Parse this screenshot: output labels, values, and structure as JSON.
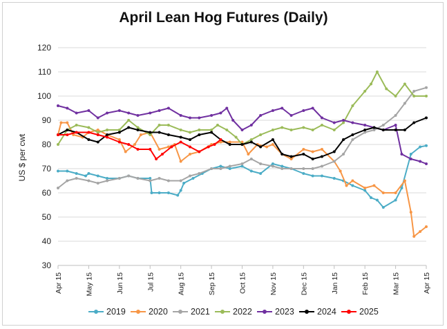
{
  "chart_data": {
    "type": "line",
    "title": "April Lean Hog Futures (Daily)",
    "ylabel": "US $ per cwt",
    "xlabel": "",
    "ylim": [
      30,
      120
    ],
    "yticks": [
      30,
      40,
      50,
      60,
      70,
      80,
      90,
      100,
      110,
      120
    ],
    "xticks": [
      "Apr 15",
      "May 15",
      "Jun 15",
      "Jul 15",
      "Aug 15",
      "Sep 15",
      "Oct 15",
      "Nov 15",
      "Dec 15",
      "Jan 15",
      "Feb 15",
      "Mar 15",
      "Apr 15"
    ],
    "grid": true,
    "legend": "bottom",
    "series": [
      {
        "name": "2019",
        "color": "#4bacc6",
        "x": [
          0,
          0.3,
          0.6,
          0.9,
          1,
          1.3,
          1.6,
          2,
          2.3,
          2.6,
          3,
          3.05,
          3.3,
          3.6,
          3.9,
          4,
          4.1,
          4.4,
          4.7,
          5,
          5.3,
          5.6,
          6,
          6.3,
          6.6,
          7,
          7.3,
          7.6,
          8,
          8.3,
          8.6,
          9,
          9.3,
          9.6,
          10,
          10.2,
          10.4,
          10.6,
          11,
          11.2,
          11.5,
          11.8,
          12
        ],
        "y": [
          69,
          69,
          68,
          67,
          68,
          67,
          66,
          66,
          67,
          66,
          66,
          60,
          60,
          60,
          59,
          61,
          64,
          66,
          68,
          70,
          71,
          70,
          71,
          69,
          68,
          72,
          71,
          70,
          68,
          67,
          67,
          66,
          65,
          63,
          61,
          58,
          57,
          54,
          57,
          62,
          76,
          79,
          79.5
        ]
      },
      {
        "name": "2020",
        "color": "#f79646",
        "x": [
          0,
          0.1,
          0.3,
          0.5,
          0.8,
          1,
          1.3,
          1.6,
          2,
          2.2,
          2.5,
          2.7,
          3,
          3.3,
          3.6,
          3.8,
          4,
          4.3,
          4.6,
          5,
          5.3,
          5.6,
          6,
          6.2,
          6.5,
          6.8,
          7,
          7.3,
          7.6,
          8,
          8.3,
          8.6,
          9,
          9.2,
          9.4,
          9.6,
          10,
          10.3,
          10.6,
          11,
          11.3,
          11.5,
          11.6,
          11.8,
          12
        ],
        "y": [
          84,
          89,
          89,
          84,
          83,
          85,
          86,
          84,
          82,
          77,
          80,
          84,
          85,
          78,
          79,
          80,
          73,
          76,
          77,
          80,
          81,
          81,
          81,
          76,
          80,
          79,
          80,
          76,
          74,
          78,
          77,
          78,
          73,
          69,
          63,
          65,
          62,
          63,
          60,
          60,
          65,
          52,
          42,
          44,
          46
        ]
      },
      {
        "name": "2021",
        "color": "#a5a5a5",
        "x": [
          0,
          0.3,
          0.6,
          1,
          1.3,
          1.6,
          2,
          2.3,
          2.6,
          3,
          3.3,
          3.6,
          4,
          4.3,
          4.6,
          5,
          5.3,
          5.6,
          6,
          6.3,
          6.6,
          7,
          7.3,
          7.6,
          8,
          8.3,
          8.6,
          9,
          9.3,
          9.6,
          10,
          10.3,
          10.6,
          11,
          11.3,
          11.6,
          12
        ],
        "y": [
          62,
          65,
          66,
          65,
          64,
          65,
          66,
          67,
          66,
          65,
          66,
          65,
          65,
          67,
          68,
          70,
          70,
          71,
          72,
          74,
          72,
          71,
          70,
          70,
          70,
          70,
          71,
          73,
          76,
          82,
          85,
          86,
          88,
          92,
          97,
          102,
          103.5
        ]
      },
      {
        "name": "2022",
        "color": "#9bbb59",
        "x": [
          0,
          0.3,
          0.6,
          1,
          1.3,
          1.6,
          2,
          2.3,
          2.6,
          3,
          3.3,
          3.6,
          4,
          4.3,
          4.6,
          5,
          5.2,
          5.5,
          5.8,
          6,
          6.3,
          6.6,
          7,
          7.3,
          7.6,
          8,
          8.3,
          8.6,
          9,
          9.3,
          9.6,
          10,
          10.2,
          10.4,
          10.7,
          11,
          11.3,
          11.6,
          12
        ],
        "y": [
          80,
          86,
          88,
          87,
          85,
          86,
          86,
          90,
          87,
          84,
          88,
          88,
          86,
          85,
          86,
          86,
          88,
          86,
          83,
          80,
          82,
          84,
          86,
          87,
          86,
          87,
          86,
          88,
          86,
          89,
          96,
          102,
          105,
          110,
          103,
          100,
          105,
          100,
          100
        ]
      },
      {
        "name": "2023",
        "color": "#7030a0",
        "x": [
          0,
          0.3,
          0.6,
          1,
          1.3,
          1.6,
          2,
          2.3,
          2.6,
          3,
          3.3,
          3.6,
          4,
          4.3,
          4.6,
          5,
          5.3,
          5.5,
          5.7,
          6,
          6.3,
          6.6,
          7,
          7.3,
          7.6,
          8,
          8.3,
          8.6,
          9,
          9.3,
          9.6,
          10,
          10.3,
          10.6,
          11,
          11.2,
          11.5,
          11.8,
          12
        ],
        "y": [
          96,
          95,
          93,
          94,
          91,
          93,
          94,
          93,
          92,
          93,
          94,
          95,
          92,
          91,
          91,
          92,
          93,
          95,
          90,
          86,
          88,
          92,
          94,
          95,
          92,
          94,
          95,
          91,
          89,
          90,
          89,
          88,
          87,
          86,
          88,
          76,
          74,
          73,
          72
        ]
      },
      {
        "name": "2024",
        "color": "#000000",
        "x": [
          0,
          0.3,
          0.6,
          1,
          1.3,
          1.6,
          2,
          2.3,
          2.6,
          3,
          3.3,
          3.6,
          4,
          4.3,
          4.6,
          5,
          5.3,
          5.6,
          6,
          6.3,
          6.6,
          7,
          7.3,
          7.6,
          8,
          8.3,
          8.6,
          9,
          9.3,
          9.6,
          10,
          10.3,
          10.6,
          11,
          11.3,
          11.6,
          12
        ],
        "y": [
          84,
          86,
          85,
          82,
          81,
          84,
          85,
          87,
          86,
          85,
          85,
          84,
          83,
          82,
          84,
          85,
          82,
          80,
          80,
          81,
          79,
          82,
          76,
          75,
          76,
          74,
          75,
          77,
          82,
          84,
          86,
          87,
          86,
          86,
          86,
          89,
          91
        ]
      },
      {
        "name": "2025",
        "color": "#ff0000",
        "x": [
          0,
          0.3,
          0.6,
          1,
          1.3,
          1.6,
          2,
          2.3,
          2.6,
          3,
          3.2,
          3.4,
          3.7,
          4,
          4.3,
          4.6,
          4.9,
          5.1,
          5.3
        ],
        "y": [
          84,
          84,
          85,
          85,
          84,
          83,
          81,
          80,
          78,
          78,
          74,
          76,
          79,
          81,
          79,
          77,
          79,
          80,
          82
        ]
      }
    ]
  }
}
